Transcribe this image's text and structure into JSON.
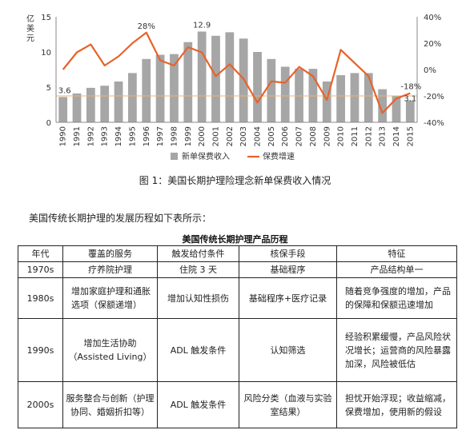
{
  "chart_data": {
    "type": "bar+line",
    "y_left_label": "亿美元",
    "y_left_ticks": [
      "15",
      "10",
      "5",
      "0"
    ],
    "y_left_range": [
      0,
      15
    ],
    "y_right_ticks": [
      "40%",
      "20%",
      "0%",
      "-20%",
      "-40%"
    ],
    "y_right_range": [
      -40,
      40
    ],
    "categories": [
      "1990",
      "1991",
      "1992",
      "1993",
      "1994",
      "1995",
      "1996",
      "1997",
      "1998",
      "1999",
      "2000",
      "2001",
      "2002",
      "2003",
      "2004",
      "2005",
      "2006",
      "2007",
      "2008",
      "2009",
      "2010",
      "2011",
      "2012",
      "2013",
      "2014",
      "2015"
    ],
    "series": [
      {
        "name": "新单保费收入",
        "type": "bar",
        "color": "#a6a6a6",
        "values": [
          3.6,
          4.1,
          4.9,
          5.2,
          5.8,
          7.0,
          9.0,
          9.6,
          9.7,
          11.4,
          12.9,
          12.3,
          12.8,
          11.9,
          10.0,
          9.0,
          7.9,
          7.6,
          7.6,
          5.8,
          6.7,
          7.0,
          7.0,
          4.7,
          3.8,
          3.1
        ]
      },
      {
        "name": "保费增速",
        "type": "line",
        "color": "#e8622a",
        "values": [
          0,
          13,
          19,
          3,
          10,
          20,
          28,
          7,
          3,
          17,
          13,
          -5,
          4,
          -7,
          -25,
          -9,
          -10,
          2,
          -5,
          -23,
          15,
          5,
          -5,
          -33,
          -22,
          -18
        ]
      }
    ],
    "data_labels": {
      "first_bar": "3.6",
      "peak_bar": "12.9",
      "last_bar": "3.1",
      "peak_rate": "28%",
      "last_rate": "-18%"
    },
    "reference_line": {
      "value": -20,
      "color": "#f0b46e"
    }
  },
  "caption": "图 1：美国长期护理险理念新单保费收入情况",
  "intro": "美国传统长期护理的发展历程如下表所示：",
  "table": {
    "title": "美国传统长期护理产品历程",
    "headers": [
      "年代",
      "覆盖的服务",
      "触发给付条件",
      "核保手段",
      "特征"
    ],
    "rows": [
      [
        "1970s",
        "疗养院护理",
        "住院 3 天",
        "基础程序",
        "产品结构单一"
      ],
      [
        "1980s",
        "增加家庭护理和通胀选项（保额递增）",
        "增加认知性损伤",
        "基础程序+医疗记录",
        "随着竞争强度的增加，产品的保障和保额迅速增加"
      ],
      [
        "1990s",
        "增加生活协助（Assisted Living）",
        "ADL 触发条件",
        "认知筛选",
        "经验积累缓慢，产品风险状况增长；运营商的风险暴露加深，风险被低估"
      ],
      [
        "2000s",
        "服务整合与创新（护理协同、婚姻折扣等）",
        "ADL 触发条件",
        "风险分类（血液与实验室结果）",
        "担忧开始浮现；收益缩减，保费增加，使用新的假设"
      ]
    ]
  }
}
